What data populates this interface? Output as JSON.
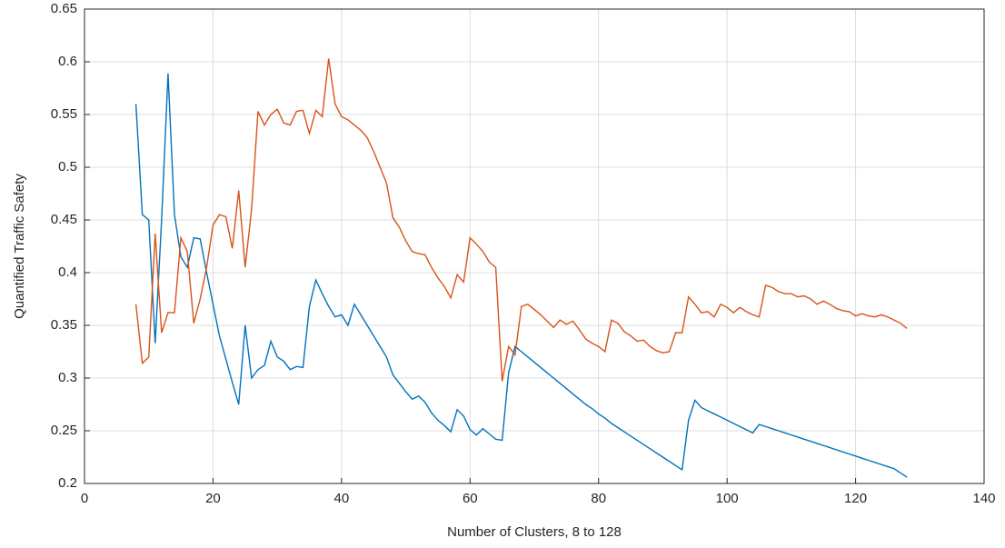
{
  "chart_data": {
    "type": "line",
    "xlabel": "Number of Clusters, 8 to 128",
    "ylabel": "Quantified Traffic Safety",
    "x": [
      8,
      9,
      10,
      11,
      12,
      13,
      14,
      15,
      16,
      17,
      18,
      19,
      20,
      21,
      22,
      23,
      24,
      25,
      26,
      27,
      28,
      29,
      30,
      31,
      32,
      33,
      34,
      35,
      36,
      37,
      38,
      39,
      40,
      41,
      42,
      43,
      44,
      45,
      46,
      47,
      48,
      49,
      50,
      51,
      52,
      53,
      54,
      55,
      56,
      57,
      58,
      59,
      60,
      61,
      62,
      63,
      64,
      65,
      66,
      67,
      68,
      69,
      70,
      71,
      72,
      73,
      74,
      75,
      76,
      77,
      78,
      79,
      80,
      81,
      82,
      83,
      84,
      85,
      86,
      87,
      88,
      89,
      90,
      91,
      92,
      93,
      94,
      95,
      96,
      97,
      98,
      99,
      100,
      101,
      102,
      103,
      104,
      105,
      106,
      107,
      108,
      109,
      110,
      111,
      112,
      113,
      114,
      115,
      116,
      117,
      118,
      119,
      120,
      121,
      122,
      123,
      124,
      125,
      126,
      127,
      128
    ],
    "series": [
      {
        "color": "#0072bd",
        "values": [
          0.56,
          0.455,
          0.45,
          0.333,
          0.45,
          0.589,
          0.455,
          0.415,
          0.405,
          0.433,
          0.432,
          0.4,
          0.37,
          0.34,
          0.318,
          0.296,
          0.275,
          0.35,
          0.3,
          0.308,
          0.312,
          0.335,
          0.32,
          0.316,
          0.308,
          0.311,
          0.31,
          0.368,
          0.393,
          0.38,
          0.368,
          0.358,
          0.36,
          0.35,
          0.37,
          0.36,
          0.35,
          0.34,
          0.33,
          0.32,
          0.303,
          0.295,
          0.287,
          0.28,
          0.283,
          0.277,
          0.267,
          0.26,
          0.255,
          0.249,
          0.27,
          0.264,
          0.251,
          0.246,
          0.252,
          0.247,
          0.242,
          0.241,
          0.305,
          0.33,
          0.325,
          0.32,
          0.315,
          0.31,
          0.305,
          0.3,
          0.295,
          0.29,
          0.285,
          0.28,
          0.275,
          0.271,
          0.266,
          0.262,
          0.257,
          0.253,
          0.249,
          0.245,
          0.241,
          0.237,
          0.233,
          0.229,
          0.225,
          0.221,
          0.217,
          0.213,
          0.26,
          0.279,
          0.272,
          0.269,
          0.266,
          0.263,
          0.26,
          0.257,
          0.254,
          0.251,
          0.248,
          0.256,
          0.254,
          0.252,
          0.25,
          0.248,
          0.246,
          0.244,
          0.242,
          0.24,
          0.238,
          0.236,
          0.234,
          0.232,
          0.23,
          0.228,
          0.226,
          0.224,
          0.222,
          0.22,
          0.218,
          0.216,
          0.214,
          0.21,
          0.206
        ]
      },
      {
        "color": "#d95319",
        "values": [
          0.37,
          0.314,
          0.32,
          0.437,
          0.343,
          0.362,
          0.362,
          0.433,
          0.42,
          0.352,
          0.375,
          0.405,
          0.445,
          0.455,
          0.453,
          0.423,
          0.478,
          0.405,
          0.46,
          0.553,
          0.54,
          0.55,
          0.555,
          0.542,
          0.54,
          0.553,
          0.554,
          0.532,
          0.554,
          0.548,
          0.603,
          0.56,
          0.548,
          0.545,
          0.54,
          0.535,
          0.528,
          0.515,
          0.5,
          0.485,
          0.452,
          0.443,
          0.43,
          0.42,
          0.418,
          0.417,
          0.405,
          0.395,
          0.387,
          0.376,
          0.398,
          0.391,
          0.433,
          0.427,
          0.42,
          0.41,
          0.405,
          0.297,
          0.33,
          0.322,
          0.368,
          0.37,
          0.365,
          0.36,
          0.354,
          0.348,
          0.355,
          0.351,
          0.354,
          0.346,
          0.337,
          0.333,
          0.33,
          0.325,
          0.355,
          0.352,
          0.344,
          0.34,
          0.335,
          0.336,
          0.33,
          0.326,
          0.324,
          0.325,
          0.343,
          0.343,
          0.377,
          0.37,
          0.362,
          0.363,
          0.358,
          0.37,
          0.367,
          0.362,
          0.367,
          0.363,
          0.36,
          0.358,
          0.388,
          0.386,
          0.382,
          0.38,
          0.38,
          0.377,
          0.378,
          0.375,
          0.37,
          0.373,
          0.37,
          0.366,
          0.364,
          0.363,
          0.359,
          0.361,
          0.359,
          0.358,
          0.36,
          0.358,
          0.355,
          0.352,
          0.347
        ]
      }
    ],
    "xlim": [
      0,
      140
    ],
    "xticks": [
      0,
      20,
      40,
      60,
      80,
      100,
      120,
      140
    ],
    "ylim": [
      0.2,
      0.65
    ],
    "yticks": [
      0.2,
      0.25,
      0.3,
      0.35,
      0.4,
      0.45,
      0.5,
      0.55,
      0.6,
      0.65
    ],
    "grid": true
  }
}
